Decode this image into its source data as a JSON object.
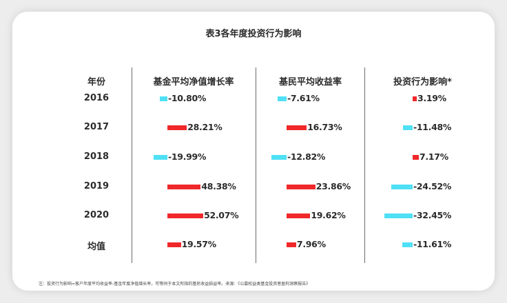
{
  "title": "表3各年度投资行为影响",
  "headers": {
    "year": "年份",
    "col1": "基金平均净值增长率",
    "col2": "基民平均收益率",
    "col3": "投资行为影响*"
  },
  "colors": {
    "positive": "#f0282a",
    "negative": "#4fe0f5"
  },
  "rows": [
    {
      "year": "2016",
      "fund": "-10.80%",
      "investor": "-7.61%",
      "impact": "3.19%"
    },
    {
      "year": "2017",
      "fund": "28.21%",
      "investor": "16.73%",
      "impact": "-11.48%"
    },
    {
      "year": "2018",
      "fund": "-19.99%",
      "investor": "-12.82%",
      "impact": "7.17%"
    },
    {
      "year": "2019",
      "fund": "48.38%",
      "investor": "23.86%",
      "impact": "-24.52%"
    },
    {
      "year": "2020",
      "fund": "52.07%",
      "investor": "19.62%",
      "impact": "-32.45%"
    },
    {
      "year": "均值",
      "fund": "19.57%",
      "investor": "7.96%",
      "impact": "-11.61%"
    }
  ],
  "note": "注：投资行为影响=客户年度平均收益率-基金年度净值增长率，可等同于本文所指的基民收益损益率。来源：《公募权益类基金投资者盈利洞察报告》",
  "chart_data": {
    "type": "table",
    "title": "表3各年度投资行为影响",
    "columns": [
      "年份",
      "基金平均净值增长率",
      "基民平均收益率",
      "投资行为影响*"
    ],
    "categories": [
      "2016",
      "2017",
      "2018",
      "2019",
      "2020",
      "均值"
    ],
    "series": [
      {
        "name": "基金平均净值增长率",
        "values": [
          -10.8,
          28.21,
          -19.99,
          48.38,
          52.07,
          19.57
        ]
      },
      {
        "name": "基民平均收益率",
        "values": [
          -7.61,
          16.73,
          -12.82,
          23.86,
          19.62,
          7.96
        ]
      },
      {
        "name": "投资行为影响*",
        "values": [
          3.19,
          -11.48,
          7.17,
          -24.52,
          -32.45,
          -11.61
        ]
      }
    ],
    "unit": "%",
    "encoding": "inline data bars: red = positive, cyan = negative",
    "note": "注：投资行为影响=客户年度平均收益率-基金年度净值增长率，可等同于本文所指的基民收益损益率。来源：《公募权益类基金投资者盈利洞察报告》"
  }
}
